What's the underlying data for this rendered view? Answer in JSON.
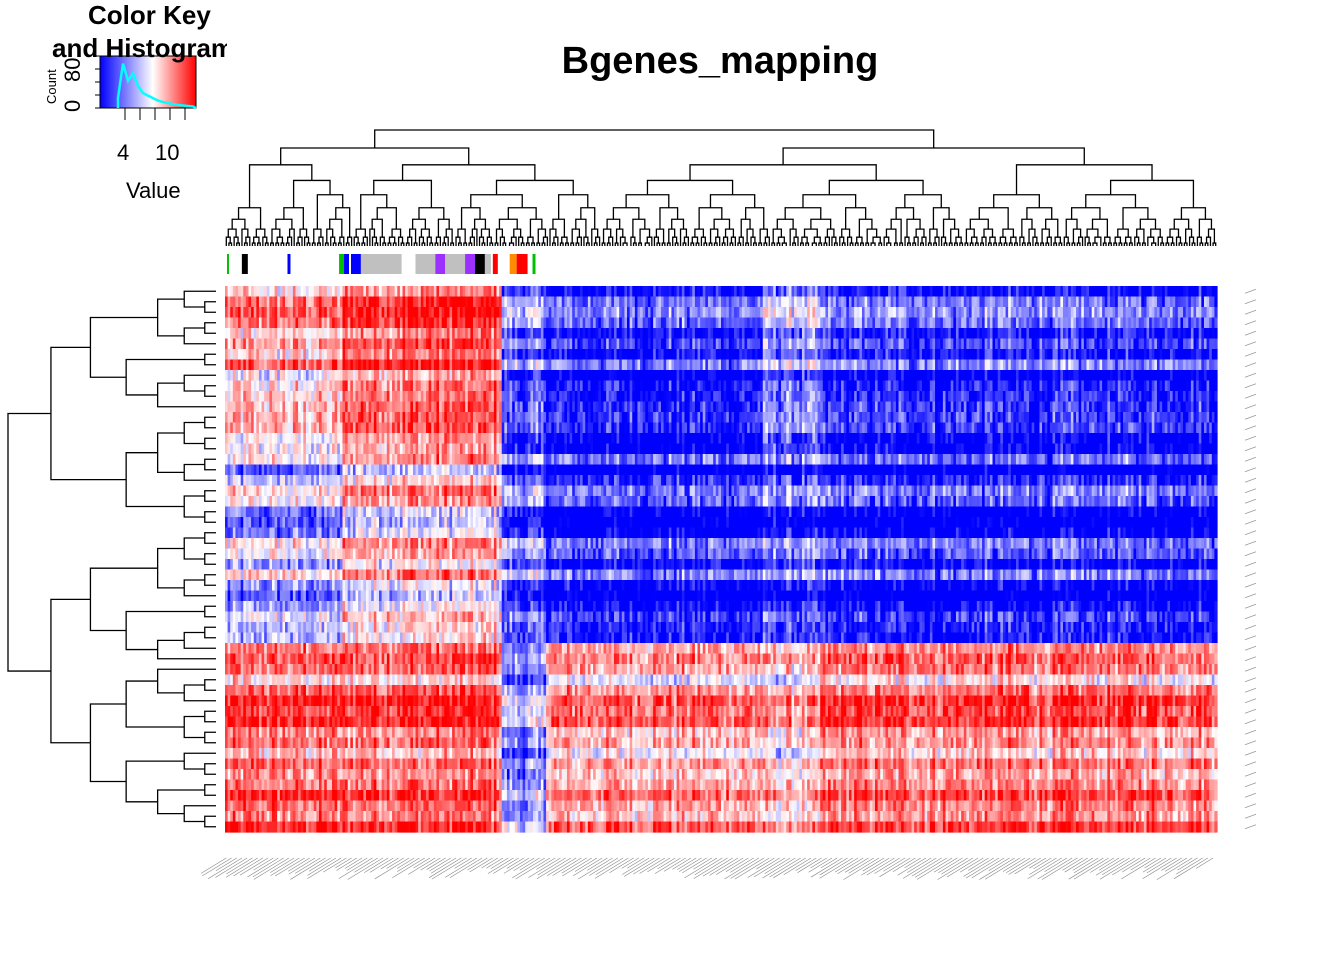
{
  "title": "Bgenes_mapping",
  "color_key": {
    "title_line1": "Color Key",
    "title_line2": "and Histogram",
    "x_label": "Value",
    "x_ticks": [
      "4",
      "10"
    ],
    "y_label": "Count",
    "y_ticks": [
      "0",
      "80"
    ],
    "colors": {
      "low": "#0000ff",
      "mid": "#ffffff",
      "high": "#ff0000",
      "histogram": "#00ffff"
    }
  },
  "chart_data": {
    "type": "heatmap",
    "title": "Bgenes_mapping",
    "color_scale": {
      "low": "#0000ff",
      "mid": "#ffffff",
      "high": "#ff0000",
      "value_ticks": [
        4,
        10
      ]
    },
    "n_rows": 52,
    "n_cols": 380,
    "row_dendrogram": true,
    "column_dendrogram": true,
    "column_side_colors": [
      "#00c000",
      "#000000",
      "#0000ff",
      "#00c000",
      "#0000ff",
      "#c0c0c0",
      "#9b30ff",
      "#ff0000",
      "#ff8c00"
    ],
    "row_labels_legible": false,
    "column_labels_legible": false,
    "grid": false
  }
}
